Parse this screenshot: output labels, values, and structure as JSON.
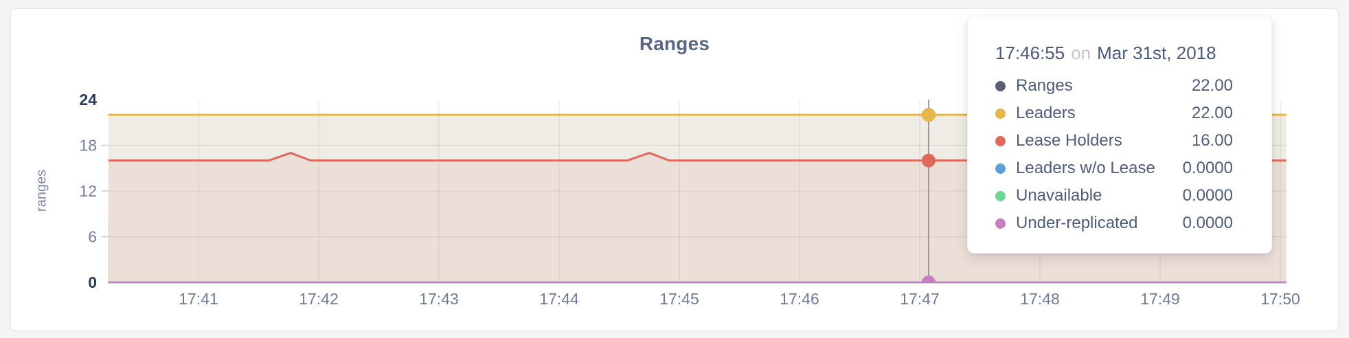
{
  "card": {
    "title": "Ranges"
  },
  "chart_data": {
    "type": "area",
    "title": "Ranges",
    "ylabel": "ranges",
    "xlabel": "",
    "grid": true,
    "x_tick_labels": [
      "17:41",
      "17:42",
      "17:43",
      "17:44",
      "17:45",
      "17:46",
      "17:47",
      "17:48",
      "17:49",
      "17:50"
    ],
    "x_domain": [
      "17:40:15",
      "17:50:03"
    ],
    "ylim": [
      0,
      24
    ],
    "y_ticks": [
      0,
      6,
      12,
      18,
      24
    ],
    "y_grid_ticks": [
      6,
      12,
      18
    ],
    "series": [
      {
        "name": "Ranges",
        "color": "#5a5f72",
        "width": 2.5,
        "points": [
          [
            "17:40:15",
            22
          ],
          [
            "17:50:03",
            22
          ]
        ]
      },
      {
        "name": "Leaders",
        "color": "#e7b548",
        "width": 3,
        "fill": "#eeece4",
        "points": [
          [
            "17:40:15",
            22
          ],
          [
            "17:50:03",
            22
          ]
        ]
      },
      {
        "name": "Lease Holders",
        "color": "#e0695e",
        "width": 3,
        "fill": "#ecdfd8",
        "points": [
          [
            "17:40:15",
            16
          ],
          [
            "17:41:35",
            16
          ],
          [
            "17:41:46",
            17
          ],
          [
            "17:41:56",
            16
          ],
          [
            "17:44:34",
            16
          ],
          [
            "17:44:45",
            17
          ],
          [
            "17:44:55",
            16
          ],
          [
            "17:50:03",
            16
          ]
        ]
      },
      {
        "name": "Leaders w/o Lease",
        "color": "#5ba0d8",
        "width": 2.5,
        "points": [
          [
            "17:40:15",
            0
          ],
          [
            "17:50:03",
            0
          ]
        ]
      },
      {
        "name": "Unavailable",
        "color": "#6fd495",
        "width": 2.5,
        "points": [
          [
            "17:40:15",
            0
          ],
          [
            "17:50:03",
            0
          ]
        ]
      },
      {
        "name": "Under-replicated",
        "color": "#c67fc0",
        "width": 2.5,
        "points": [
          [
            "17:40:15",
            0
          ],
          [
            "17:50:03",
            0
          ]
        ]
      }
    ],
    "hover": {
      "time": "17:46:55",
      "values": {
        "Ranges": 22,
        "Leaders": 22,
        "Lease Holders": 16,
        "Leaders w/o Lease": 0,
        "Unavailable": 0,
        "Under-replicated": 0
      }
    },
    "legend_position": "tooltip"
  },
  "tooltip": {
    "time": "17:46:55",
    "on_word": "on",
    "date": "Mar 31st, 2018",
    "rows": [
      {
        "label": "Ranges",
        "color": "#5a5f72",
        "value": "22.00"
      },
      {
        "label": "Leaders",
        "color": "#e7b548",
        "value": "22.00"
      },
      {
        "label": "Lease Holders",
        "color": "#e0695e",
        "value": "16.00"
      },
      {
        "label": "Leaders w/o Lease",
        "color": "#5ba0d8",
        "value": "0.0000"
      },
      {
        "label": "Unavailable",
        "color": "#6fd495",
        "value": "0.0000"
      },
      {
        "label": "Under-replicated",
        "color": "#c67fc0",
        "value": "0.0000"
      }
    ]
  },
  "colors": {
    "title": "#5b6884",
    "axis_tick_strong": "#2d3b57",
    "axis_tick_muted": "#77819b",
    "x_tick": "#6f7b94",
    "grid_line": "rgba(90,80,55,0.10)",
    "hover_line": "#9b9b9b",
    "card_background": "#ffffff",
    "page_background": "#f5f5f6"
  }
}
